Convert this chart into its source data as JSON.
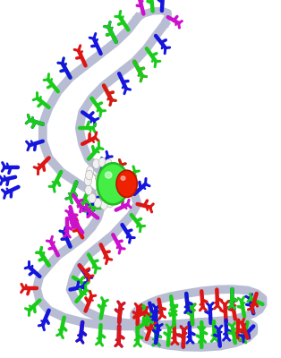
{
  "background_color": "#ffffff",
  "figure_width": 3.14,
  "figure_height": 4.0,
  "dpi": 100,
  "backbone_color": "#b8bdd4",
  "colors": {
    "green": "#1acc1a",
    "blue": "#1515dd",
    "red": "#dd1515",
    "magenta": "#cc11cc",
    "white": "#f2f2f2",
    "gray": "#bbbbbb"
  },
  "seed": 42
}
